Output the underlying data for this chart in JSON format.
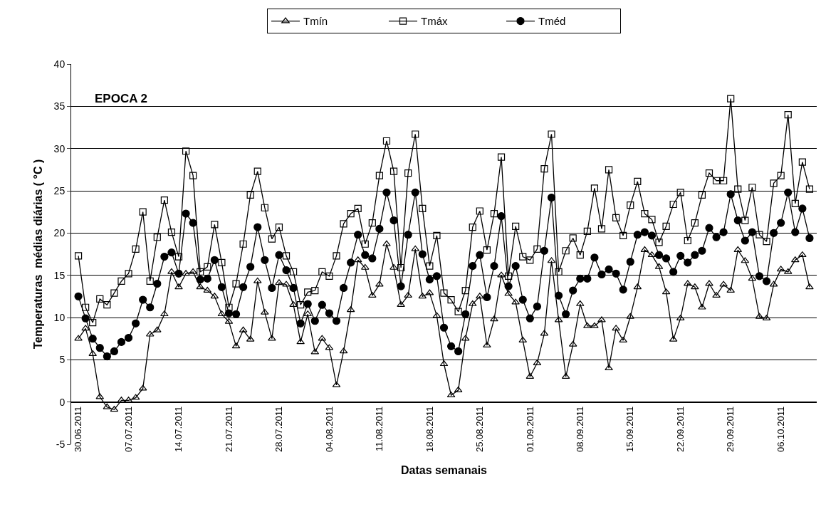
{
  "chart_data": {
    "type": "line",
    "xlabel": "Datas semanais",
    "ylabel": "Temperaturas  médias diárias ( °C )",
    "annotations": [
      "EPOCA 2"
    ],
    "x": [
      "2011-06-30",
      "2011-07-01",
      "2011-07-02",
      "2011-07-03",
      "2011-07-04",
      "2011-07-05",
      "2011-07-06",
      "2011-07-07",
      "2011-07-08",
      "2011-07-09",
      "2011-07-10",
      "2011-07-11",
      "2011-07-12",
      "2011-07-13",
      "2011-07-14",
      "2011-07-15",
      "2011-07-16",
      "2011-07-17",
      "2011-07-18",
      "2011-07-19",
      "2011-07-20",
      "2011-07-21",
      "2011-07-22",
      "2011-07-23",
      "2011-07-24",
      "2011-07-25",
      "2011-07-26",
      "2011-07-27",
      "2011-07-28",
      "2011-07-29",
      "2011-07-30",
      "2011-07-31",
      "2011-08-01",
      "2011-08-02",
      "2011-08-03",
      "2011-08-04",
      "2011-08-05",
      "2011-08-06",
      "2011-08-07",
      "2011-08-08",
      "2011-08-09",
      "2011-08-10",
      "2011-08-11",
      "2011-08-12",
      "2011-08-13",
      "2011-08-14",
      "2011-08-15",
      "2011-08-16",
      "2011-08-17",
      "2011-08-18",
      "2011-08-19",
      "2011-08-20",
      "2011-08-21",
      "2011-08-22",
      "2011-08-23",
      "2011-08-24",
      "2011-08-25",
      "2011-08-26",
      "2011-08-27",
      "2011-08-28",
      "2011-08-29",
      "2011-08-30",
      "2011-08-31",
      "2011-09-01",
      "2011-09-02",
      "2011-09-03",
      "2011-09-04",
      "2011-09-05",
      "2011-09-06",
      "2011-09-07",
      "2011-09-08",
      "2011-09-09",
      "2011-09-10",
      "2011-09-11",
      "2011-09-12",
      "2011-09-13",
      "2011-09-14",
      "2011-09-15",
      "2011-09-16",
      "2011-09-17",
      "2011-09-18",
      "2011-09-19",
      "2011-09-20",
      "2011-09-21",
      "2011-09-22",
      "2011-09-23",
      "2011-09-24",
      "2011-09-25",
      "2011-09-26",
      "2011-09-27",
      "2011-09-28",
      "2011-09-29",
      "2011-09-30",
      "2011-10-01",
      "2011-10-02",
      "2011-10-03",
      "2011-10-04",
      "2011-10-05",
      "2011-10-06",
      "2011-10-07",
      "2011-10-08",
      "2011-10-09",
      "2011-10-10"
    ],
    "series": [
      {
        "name": "Tmín",
        "color": "#000000",
        "marker": "triangle",
        "values": [
          7.5,
          8.7,
          5.7,
          0.6,
          -0.6,
          -0.9,
          0.2,
          0.2,
          0.5,
          1.6,
          8.0,
          8.5,
          10.4,
          15.4,
          13.6,
          15.2,
          15.4,
          13.6,
          13.2,
          12.5,
          10.4,
          9.5,
          6.6,
          8.5,
          7.4,
          14.3,
          10.6,
          7.5,
          14.1,
          13.9,
          11.5,
          7.1,
          10.4,
          5.9,
          7.5,
          6.4,
          2.0,
          6.0,
          10.9,
          16.8,
          15.9,
          12.6,
          13.9,
          18.7,
          15.9,
          11.5,
          12.6,
          18.1,
          12.5,
          12.9,
          10.2,
          4.5,
          0.8,
          1.4,
          7.5,
          11.6,
          12.5,
          6.7,
          9.8,
          15.0,
          12.8,
          11.8,
          7.3,
          3.0,
          4.6,
          8.1,
          16.7,
          9.7,
          3.0,
          6.8,
          11.6,
          9.0,
          9.0,
          9.7,
          4.0,
          8.7,
          7.3,
          10.1,
          13.6,
          18.0,
          17.4,
          16.0,
          13.0,
          7.4,
          9.9,
          14.0,
          13.6,
          11.2,
          14.0,
          12.6,
          13.9,
          13.2,
          18.0,
          16.7,
          14.6,
          10.1,
          9.9,
          13.9,
          15.7,
          15.4,
          16.8,
          17.4,
          13.6
        ]
      },
      {
        "name": "Tmáx",
        "color": "#000000",
        "marker": "square",
        "values": [
          17.3,
          11.2,
          9.4,
          12.2,
          11.5,
          12.9,
          14.3,
          15.2,
          18.1,
          22.5,
          14.3,
          19.5,
          23.9,
          20.1,
          17.2,
          29.7,
          26.8,
          15.4,
          16.0,
          21.0,
          16.5,
          11.2,
          14.0,
          18.7,
          24.5,
          27.3,
          23.0,
          19.3,
          20.7,
          17.3,
          15.4,
          11.5,
          13.0,
          13.2,
          15.4,
          14.9,
          17.3,
          21.1,
          22.3,
          22.9,
          18.7,
          21.2,
          26.8,
          30.9,
          27.3,
          15.9,
          27.1,
          31.7,
          22.9,
          16.1,
          19.7,
          12.9,
          12.1,
          10.7,
          13.2,
          20.7,
          22.6,
          18.0,
          22.3,
          29.0,
          14.9,
          20.8,
          17.2,
          16.8,
          18.1,
          27.6,
          31.7,
          15.4,
          17.9,
          19.4,
          17.4,
          20.2,
          25.3,
          20.5,
          27.5,
          21.8,
          19.7,
          23.3,
          26.1,
          22.3,
          21.6,
          18.9,
          20.8,
          23.4,
          24.8,
          19.1,
          21.2,
          24.5,
          27.1,
          26.2,
          26.2,
          35.9,
          25.2,
          21.5,
          25.4,
          19.8,
          19.0,
          25.9,
          26.8,
          34.0,
          23.5,
          28.4,
          25.2
        ]
      },
      {
        "name": "Tméd",
        "color": "#000000",
        "marker": "circle",
        "values": [
          12.5,
          9.9,
          7.5,
          6.4,
          5.4,
          6.0,
          7.1,
          7.6,
          9.3,
          12.1,
          11.2,
          14.0,
          17.2,
          17.7,
          15.2,
          22.3,
          21.2,
          14.5,
          14.6,
          16.8,
          13.6,
          10.5,
          10.4,
          13.6,
          16.0,
          20.7,
          16.8,
          13.5,
          17.4,
          15.6,
          13.5,
          9.3,
          11.6,
          9.6,
          11.5,
          10.5,
          9.6,
          13.5,
          16.5,
          19.8,
          17.4,
          17.0,
          20.5,
          24.8,
          21.5,
          13.7,
          19.8,
          24.8,
          17.5,
          14.5,
          14.9,
          8.8,
          6.6,
          6.0,
          10.4,
          16.1,
          17.4,
          12.4,
          16.1,
          22.0,
          13.7,
          16.1,
          12.1,
          9.9,
          11.3,
          17.9,
          24.2,
          12.6,
          10.4,
          13.2,
          14.6,
          14.6,
          17.1,
          15.1,
          15.7,
          15.2,
          13.3,
          16.6,
          19.8,
          20.1,
          19.7,
          17.4,
          17.0,
          15.4,
          17.3,
          16.5,
          17.4,
          17.9,
          20.6,
          19.5,
          20.1,
          24.6,
          21.5,
          19.1,
          20.1,
          14.9,
          14.3,
          20.0,
          21.2,
          24.8,
          20.1,
          22.9,
          19.4
        ]
      }
    ],
    "xlim": [
      "2011-06-29",
      "2011-10-11"
    ],
    "xticks": [
      {
        "value": "2011-06-30",
        "label": "30.06.2011"
      },
      {
        "value": "2011-07-07",
        "label": "07.07.2011"
      },
      {
        "value": "2011-07-14",
        "label": "14.07.2011"
      },
      {
        "value": "2011-07-21",
        "label": "21.07.2011"
      },
      {
        "value": "2011-07-28",
        "label": "28.07.2011"
      },
      {
        "value": "2011-08-04",
        "label": "04.08.2011"
      },
      {
        "value": "2011-08-11",
        "label": "11.08.2011"
      },
      {
        "value": "2011-08-18",
        "label": "18.08.2011"
      },
      {
        "value": "2011-08-25",
        "label": "25.08.2011"
      },
      {
        "value": "2011-09-01",
        "label": "01.09.2011"
      },
      {
        "value": "2011-09-08",
        "label": "08.09.2011"
      },
      {
        "value": "2011-09-15",
        "label": "15.09.2011"
      },
      {
        "value": "2011-09-22",
        "label": "22.09.2011"
      },
      {
        "value": "2011-09-29",
        "label": "29.09.2011"
      },
      {
        "value": "2011-10-06",
        "label": "06.10.2011"
      }
    ],
    "ylim": [
      -5,
      40
    ],
    "yticks": [
      -5,
      0,
      5,
      10,
      15,
      20,
      25,
      30,
      35,
      40
    ],
    "grid": "y",
    "legend": "top",
    "line_style": "solid"
  }
}
